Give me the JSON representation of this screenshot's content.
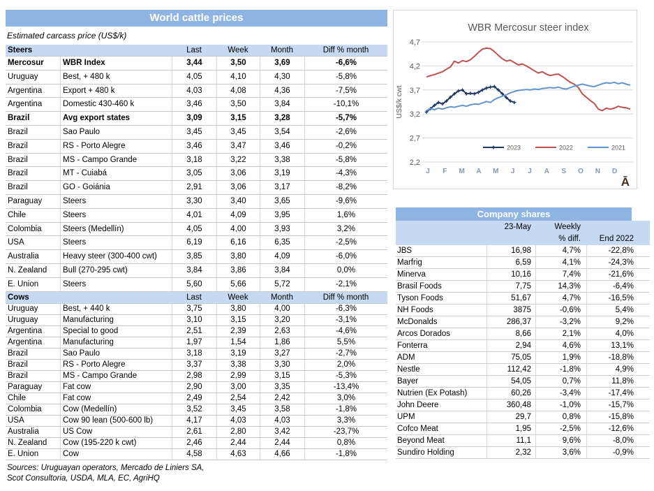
{
  "colors": {
    "accent_blue": "#8eb4e3",
    "light_blue": "#c5d9f1",
    "series_2023": "#1f3864",
    "series_2022": "#c0504d",
    "series_2021": "#6394cf",
    "gridline": "#d9d9d9",
    "axis_text": "#595959",
    "month_text": "#8496b0",
    "watermark": "#41301c"
  },
  "left_table": {
    "title": "World cattle prices",
    "subtitle": "Estimated carcass price (US$/k)",
    "columns": [
      "Last",
      "Week",
      "Month",
      "Diff % month"
    ],
    "sections": [
      {
        "label": "Steers",
        "rows": [
          {
            "country": "Mercosur",
            "desc": "WBR Index",
            "last": "3,44",
            "week": "3,50",
            "month": "3,69",
            "diff": "-6,6%",
            "bold": true
          },
          {
            "country": "Uruguay",
            "desc": "Best, + 480 k",
            "last": "4,05",
            "week": "4,10",
            "month": "4,30",
            "diff": "-5,8%"
          },
          {
            "country": "Argentina",
            "desc": "Export + 480 k",
            "last": "4,03",
            "week": "4,08",
            "month": "4,36",
            "diff": "-7,5%"
          },
          {
            "country": "Argentina",
            "desc": "Domestic 430-460 k",
            "last": "3,46",
            "week": "3,50",
            "month": "3,84",
            "diff": "-10,1%"
          },
          {
            "country": "Brazil",
            "desc": "Avg export states",
            "last": "3,09",
            "week": "3,15",
            "month": "3,28",
            "diff": "-5,7%",
            "bold": true
          },
          {
            "country": "Brazil",
            "desc": "Sao Paulo",
            "last": "3,45",
            "week": "3,45",
            "month": "3,54",
            "diff": "-2,6%"
          },
          {
            "country": "Brazil",
            "desc": "RS - Porto Alegre",
            "last": "3,46",
            "week": "3,47",
            "month": "3,46",
            "diff": "-0,2%"
          },
          {
            "country": "Brazil",
            "desc": "MS - Campo Grande",
            "last": "3,18",
            "week": "3,22",
            "month": "3,38",
            "diff": "-5,8%"
          },
          {
            "country": "Brazil",
            "desc": "MT - Cuiabá",
            "last": "3,05",
            "week": "3,06",
            "month": "3,19",
            "diff": "-4,3%"
          },
          {
            "country": "Brazil",
            "desc": "GO - Goiánia",
            "last": "2,91",
            "week": "3,06",
            "month": "3,17",
            "diff": "-8,2%"
          },
          {
            "country": "Paraguay",
            "desc": "Steers",
            "last": "3,30",
            "week": "3,40",
            "month": "3,65",
            "diff": "-9,6%"
          },
          {
            "country": "Chile",
            "desc": "Steers",
            "last": "4,01",
            "week": "4,09",
            "month": "3,95",
            "diff": "1,6%"
          },
          {
            "country": "Colombia",
            "desc": "Steers (Medellín)",
            "last": "4,05",
            "week": "4,00",
            "month": "3,93",
            "diff": "3,2%"
          },
          {
            "country": "USA",
            "desc": "Steers",
            "last": "6,19",
            "week": "6,16",
            "month": "6,35",
            "diff": "-2,5%"
          },
          {
            "country": "Australia",
            "desc": "Heavy steer (300-400 cwt)",
            "last": "3,85",
            "week": "3,80",
            "month": "4,09",
            "diff": "-6,0%"
          },
          {
            "country": "N. Zealand",
            "desc": "Bull (270-295 cwt)",
            "last": "3,84",
            "week": "3,86",
            "month": "3,84",
            "diff": "0,0%"
          },
          {
            "country": "E. Union",
            "desc": "Steers",
            "last": "5,60",
            "week": "5,66",
            "month": "5,72",
            "diff": "-2,1%"
          }
        ]
      },
      {
        "label": "Cows",
        "rows": [
          {
            "country": "Uruguay",
            "desc": "Best, + 440 k",
            "last": "3,75",
            "week": "3,80",
            "month": "4,00",
            "diff": "-6,3%"
          },
          {
            "country": "Uruguay",
            "desc": "Manufacturing",
            "last": "3,10",
            "week": "3,15",
            "month": "3,20",
            "diff": "-3,1%"
          },
          {
            "country": "Argentina",
            "desc": "Special to good",
            "last": "2,51",
            "week": "2,39",
            "month": "2,63",
            "diff": "-4,6%"
          },
          {
            "country": "Argentina",
            "desc": "Manufacturing",
            "last": "1,97",
            "week": "1,54",
            "month": "1,86",
            "diff": "5,5%"
          },
          {
            "country": "Brazil",
            "desc": "Sao Paulo",
            "last": "3,18",
            "week": "3,19",
            "month": "3,27",
            "diff": "-2,7%"
          },
          {
            "country": "Brazil",
            "desc": "RS - Porto Alegre",
            "last": "3,37",
            "week": "3,38",
            "month": "3,30",
            "diff": "2,0%"
          },
          {
            "country": "Brazil",
            "desc": "MS - Campo Grande",
            "last": "2,98",
            "week": "2,99",
            "month": "3,15",
            "diff": "-5,3%"
          },
          {
            "country": "Paraguay",
            "desc": "Fat cow",
            "last": "2,90",
            "week": "3,00",
            "month": "3,35",
            "diff": "-13,4%"
          },
          {
            "country": "Chile",
            "desc": "Fat cow",
            "last": "2,49",
            "week": "2,54",
            "month": "2,42",
            "diff": "3,0%"
          },
          {
            "country": "Colombia",
            "desc": "Cow (Medellín)",
            "last": "3,52",
            "week": "3,45",
            "month": "3,58",
            "diff": "-1,8%"
          },
          {
            "country": "USA",
            "desc": "Cow 90 lean (500-600 lb)",
            "last": "4,17",
            "week": "4,03",
            "month": "4,03",
            "diff": "3,3%"
          },
          {
            "country": "Australia",
            "desc": "US Cow",
            "last": "2,61",
            "week": "2,80",
            "month": "3,42",
            "diff": "-23,7%"
          },
          {
            "country": "N. Zealand",
            "desc": "Cow (195-220 k cwt)",
            "last": "2,46",
            "week": "2,44",
            "month": "2,44",
            "diff": "0,8%"
          },
          {
            "country": "E. Union",
            "desc": "Cow",
            "last": "4,58",
            "week": "4,63",
            "month": "4,66",
            "diff": "-1,8%"
          }
        ]
      }
    ],
    "sources": [
      "Sources: Uruguayan operators, Mercado de Liniers SA,",
      "Scot Consultoria, USDA, MLA, EC, AgriHQ"
    ]
  },
  "chart_data": {
    "type": "line",
    "title": "WBR Mercosur steer index",
    "xlabel": "",
    "ylabel": "US$/k cwt",
    "ylim": [
      2.2,
      4.7
    ],
    "yticks": [
      4.7,
      4.2,
      3.7,
      3.2,
      2.7,
      2.2
    ],
    "x_tick_labels": [
      "J",
      "F",
      "M",
      "A",
      "M",
      "J",
      "J",
      "A",
      "S",
      "O",
      "N",
      "D"
    ],
    "x_unit": "weeks",
    "weeks_per_year": 52,
    "grid": true,
    "legend_position": "inside-bottom-right",
    "watermark": "Ā",
    "series": [
      {
        "name": "2023",
        "color": "#1f3864",
        "marker": true,
        "values": [
          3.24,
          3.31,
          3.38,
          3.44,
          3.41,
          3.47,
          3.55,
          3.62,
          3.68,
          3.7,
          3.62,
          3.63,
          3.62,
          3.65,
          3.7,
          3.74,
          3.76,
          3.77,
          3.7,
          3.62,
          3.54,
          3.47,
          3.44
        ]
      },
      {
        "name": "2022",
        "color": "#c0504d",
        "marker": false,
        "values": [
          3.97,
          4.0,
          4.02,
          4.05,
          4.08,
          4.13,
          4.18,
          4.3,
          4.26,
          4.31,
          4.29,
          4.33,
          4.4,
          4.48,
          4.55,
          4.57,
          4.56,
          4.5,
          4.42,
          4.35,
          4.3,
          4.32,
          4.27,
          4.22,
          4.24,
          4.2,
          4.15,
          4.1,
          4.05,
          4.08,
          4.03,
          4.0,
          4.02,
          4.03,
          3.98,
          3.92,
          3.86,
          3.82,
          3.75,
          3.62,
          3.55,
          3.48,
          3.42,
          3.3,
          3.27,
          3.32,
          3.3,
          3.32,
          3.36,
          3.34,
          3.33,
          3.3
        ]
      },
      {
        "name": "2021",
        "color": "#6394cf",
        "marker": false,
        "values": [
          3.27,
          3.31,
          3.29,
          3.32,
          3.3,
          3.33,
          3.35,
          3.34,
          3.36,
          3.38,
          3.36,
          3.39,
          3.41,
          3.4,
          3.43,
          3.46,
          3.44,
          3.5,
          3.54,
          3.57,
          3.6,
          3.64,
          3.67,
          3.69,
          3.7,
          3.71,
          3.7,
          3.72,
          3.71,
          3.73,
          3.74,
          3.75,
          3.74,
          3.76,
          3.73,
          3.72,
          3.75,
          3.78,
          3.8,
          3.82,
          3.8,
          3.78,
          3.77,
          3.8,
          3.83,
          3.85,
          3.84,
          3.86,
          3.83,
          3.85,
          3.82,
          3.8
        ]
      }
    ]
  },
  "company_table": {
    "title": "Company shares",
    "headers": {
      "date": "23-May",
      "weekly1": "Weekly",
      "weekly2": "% diff.",
      "end": "End 2022"
    },
    "rows": [
      {
        "name": "JBS",
        "price": "16,98",
        "weekly": "4,7%",
        "end": "-22,8%"
      },
      {
        "name": "Marfrig",
        "price": "6,59",
        "weekly": "4,1%",
        "end": "-24,3%"
      },
      {
        "name": "Minerva",
        "price": "10,16",
        "weekly": "7,4%",
        "end": "-21,6%"
      },
      {
        "name": "Brasil Foods",
        "price": "7,75",
        "weekly": "14,3%",
        "end": "-6,4%"
      },
      {
        "name": "Tyson Foods",
        "price": "51,67",
        "weekly": "4,7%",
        "end": "-16,5%"
      },
      {
        "name": "NH Foods",
        "price": "3875",
        "weekly": "-0,6%",
        "end": "5,4%"
      },
      {
        "name": "McDonalds",
        "price": "286,37",
        "weekly": "-3,2%",
        "end": "9,2%"
      },
      {
        "name": "Arcos Dorados",
        "price": "8,66",
        "weekly": "2,1%",
        "end": "4,0%"
      },
      {
        "name": "Fonterra",
        "price": "2,94",
        "weekly": "4,6%",
        "end": "13,1%"
      },
      {
        "name": "ADM",
        "price": "75,05",
        "weekly": "1,9%",
        "end": "-18,8%"
      },
      {
        "name": "Nestle",
        "price": "112,42",
        "weekly": "-1,8%",
        "end": "4,9%"
      },
      {
        "name": "Bayer",
        "price": "54,05",
        "weekly": "0,7%",
        "end": "11,8%"
      },
      {
        "name": "Nutrien (Ex Potash)",
        "price": "60,26",
        "weekly": "-3,4%",
        "end": "-17,4%"
      },
      {
        "name": "John Deere",
        "price": "360,48",
        "weekly": "-1,0%",
        "end": "-15,7%"
      },
      {
        "name": "UPM",
        "price": "29,7",
        "weekly": "0,8%",
        "end": "-15,8%"
      },
      {
        "name": "Cofco Meat",
        "price": "1,95",
        "weekly": "-2,5%",
        "end": "-12,6%"
      },
      {
        "name": "Beyond Meat",
        "price": "11,1",
        "weekly": "9,6%",
        "end": "-8,0%"
      },
      {
        "name": "Sundiro Holding",
        "price": "2,32",
        "weekly": "3,6%",
        "end": "-0,9%"
      }
    ]
  }
}
